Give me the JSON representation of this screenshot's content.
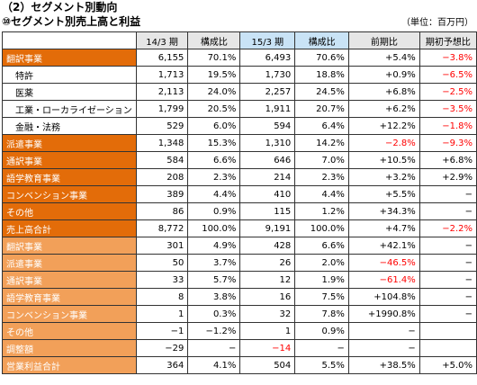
{
  "titles": {
    "section": "（2）セグメント別動向",
    "subsection": "⑩セグメント別売上高と利益",
    "unit": "（単位：百万円）"
  },
  "table": {
    "headers": [
      "",
      "14/3 期",
      "構成比",
      "15/3 期",
      "構成比",
      "前期比",
      "期初予想比"
    ],
    "rows": [
      {
        "label": "翻訳事業",
        "style": "dark",
        "cells": [
          "6,155",
          "70.1%",
          "6,493",
          "70.6%",
          "+5.4%",
          "−3.8%"
        ],
        "neg": [
          false,
          false,
          false,
          false,
          false,
          true
        ]
      },
      {
        "label": "特許",
        "style": "sub",
        "cells": [
          "1,713",
          "19.5%",
          "1,730",
          "18.8%",
          "+0.9%",
          "−6.5%"
        ],
        "neg": [
          false,
          false,
          false,
          false,
          false,
          true
        ]
      },
      {
        "label": "医薬",
        "style": "sub",
        "cells": [
          "2,113",
          "24.0%",
          "2,257",
          "24.5%",
          "+6.8%",
          "−2.5%"
        ],
        "neg": [
          false,
          false,
          false,
          false,
          false,
          true
        ]
      },
      {
        "label": "工業・ローカライゼーション",
        "style": "sub",
        "cells": [
          "1,799",
          "20.5%",
          "1,911",
          "20.7%",
          "+6.2%",
          "−3.5%"
        ],
        "neg": [
          false,
          false,
          false,
          false,
          false,
          true
        ]
      },
      {
        "label": "金融・法務",
        "style": "sub",
        "cells": [
          "529",
          "6.0%",
          "594",
          "6.4%",
          "+12.2%",
          "−1.8%"
        ],
        "neg": [
          false,
          false,
          false,
          false,
          false,
          true
        ]
      },
      {
        "label": "派遣事業",
        "style": "dark",
        "cells": [
          "1,348",
          "15.3%",
          "1,310",
          "14.2%",
          "−2.8%",
          "−9.3%"
        ],
        "neg": [
          false,
          false,
          false,
          false,
          true,
          true
        ]
      },
      {
        "label": "通訳事業",
        "style": "dark",
        "cells": [
          "584",
          "6.6%",
          "646",
          "7.0%",
          "+10.5%",
          "+6.8%"
        ],
        "neg": [
          false,
          false,
          false,
          false,
          false,
          false
        ]
      },
      {
        "label": "語学教育事業",
        "style": "dark",
        "cells": [
          "208",
          "2.3%",
          "214",
          "2.3%",
          "+3.2%",
          "+2.9%"
        ],
        "neg": [
          false,
          false,
          false,
          false,
          false,
          false
        ]
      },
      {
        "label": "コンベンション事業",
        "style": "dark",
        "cells": [
          "389",
          "4.4%",
          "410",
          "4.4%",
          "+5.5%",
          "−"
        ],
        "neg": [
          false,
          false,
          false,
          false,
          false,
          false
        ]
      },
      {
        "label": "その他",
        "style": "dark",
        "cells": [
          "86",
          "0.9%",
          "115",
          "1.2%",
          "+34.3%",
          "−"
        ],
        "neg": [
          false,
          false,
          false,
          false,
          false,
          false
        ]
      },
      {
        "label": "売上高合計",
        "style": "dark",
        "cells": [
          "8,772",
          "100.0%",
          "9,191",
          "100.0%",
          "+4.7%",
          "−2.2%"
        ],
        "neg": [
          false,
          false,
          false,
          false,
          false,
          true
        ]
      },
      {
        "label": "翻訳事業",
        "style": "light",
        "cells": [
          "301",
          "4.9%",
          "428",
          "6.6%",
          "+42.1%",
          "−"
        ],
        "neg": [
          false,
          false,
          false,
          false,
          false,
          false
        ]
      },
      {
        "label": "派遣事業",
        "style": "light",
        "cells": [
          "50",
          "3.7%",
          "26",
          "2.0%",
          "−46.5%",
          "−"
        ],
        "neg": [
          false,
          false,
          false,
          false,
          true,
          false
        ]
      },
      {
        "label": "通訳事業",
        "style": "light",
        "cells": [
          "33",
          "5.7%",
          "12",
          "1.9%",
          "−61.4%",
          "−"
        ],
        "neg": [
          false,
          false,
          false,
          false,
          true,
          false
        ]
      },
      {
        "label": "語学教育事業",
        "style": "light",
        "cells": [
          "8",
          "3.8%",
          "16",
          "7.5%",
          "+104.8%",
          "−"
        ],
        "neg": [
          false,
          false,
          false,
          false,
          false,
          false
        ]
      },
      {
        "label": "コンベンション事業",
        "style": "light",
        "cells": [
          "1",
          "0.3%",
          "32",
          "7.8%",
          "+1990.8%",
          "−"
        ],
        "neg": [
          false,
          false,
          false,
          false,
          false,
          false
        ]
      },
      {
        "label": "その他",
        "style": "light",
        "cells": [
          "−1",
          "−1.2%",
          "1",
          "0.9%",
          "−",
          ""
        ],
        "neg": [
          false,
          false,
          false,
          false,
          false,
          false
        ]
      },
      {
        "label": "調整額",
        "style": "light",
        "cells": [
          "−29",
          "−",
          "−14",
          "−",
          "−",
          ""
        ],
        "neg": [
          false,
          false,
          true,
          false,
          false,
          false
        ]
      },
      {
        "label": "営業利益合計",
        "style": "light",
        "cells": [
          "364",
          "4.1%",
          "504",
          "5.5%",
          "+38.5%",
          "+5.0%"
        ],
        "neg": [
          false,
          false,
          false,
          false,
          false,
          false
        ]
      }
    ]
  }
}
